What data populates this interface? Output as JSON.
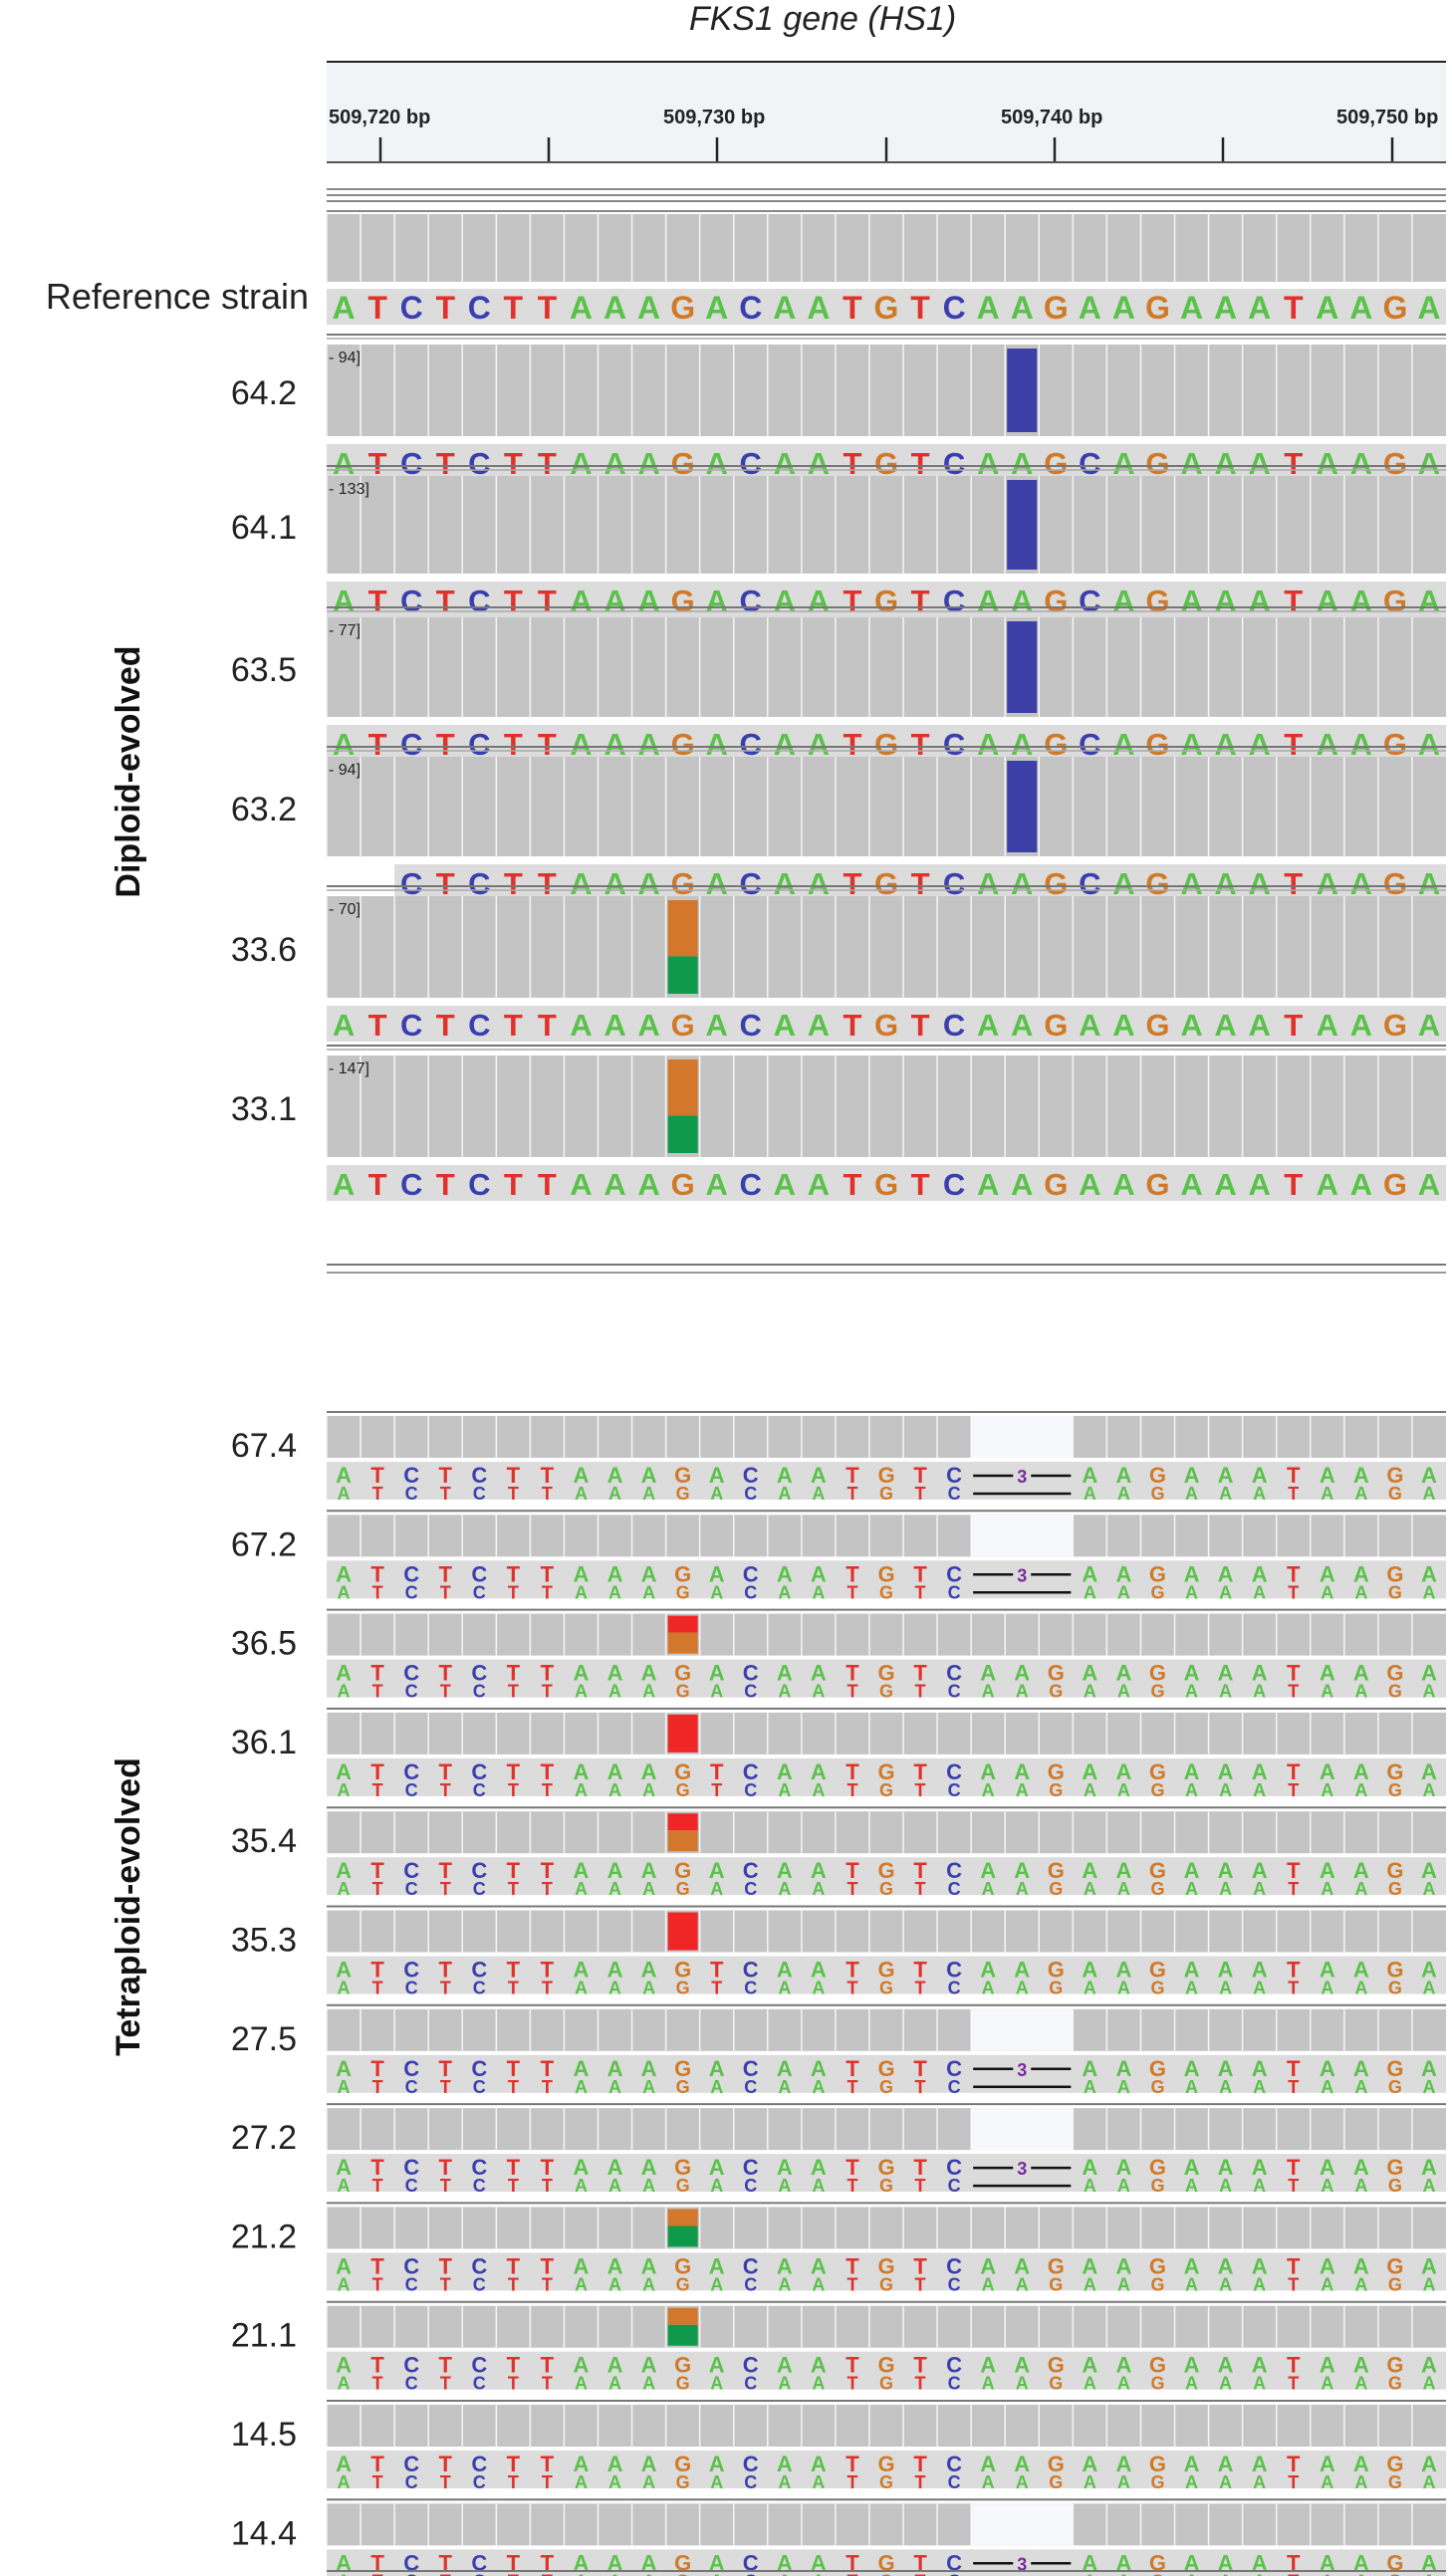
{
  "title": "FKS1 gene (HS1)",
  "ruler": {
    "labels": [
      "509,720 bp",
      "509,730 bp",
      "509,740 bp",
      "509,750 bp"
    ]
  },
  "reference": {
    "label": "Reference strain",
    "sequence": "ATCTCTTAAAGACAATGTCAAGAAGAAATAAGA"
  },
  "groups": {
    "diploid": "Diploid-evolved",
    "tetraploid": "Tetraploid-evolved"
  },
  "diploid_samples": [
    {
      "name": "64.2",
      "range": "- 94]",
      "mutation": "blue",
      "seq": "ATCTCTTAAAGACAATGTCAAGCAGAAATAAGA",
      "startIdx": 0
    },
    {
      "name": "64.1",
      "range": "- 133]",
      "mutation": "blue",
      "seq": "ATCTCTTAAAGACAATGTCAAGCAGAAATAAGA",
      "startIdx": 0
    },
    {
      "name": "63.5",
      "range": "- 77]",
      "mutation": "blue",
      "seq": "ATCTCTTAAAGACAATGTCAAGCAGAAATAAGA",
      "startIdx": 0
    },
    {
      "name": "63.2",
      "range": "- 94]",
      "mutation": "blue",
      "seq": "ATCTCTTAAAGACAATGTCAAGCAGAAATAAGA",
      "startIdx": 2
    },
    {
      "name": "33.6",
      "range": "- 70]",
      "mutation": "orange-green",
      "seq": "ATCTCTTAAAGACAATGTCAAGAAGAAATAAGA",
      "startIdx": 0
    },
    {
      "name": "33.1",
      "range": "- 147]",
      "mutation": "orange-green",
      "seq": "ATCTCTTAAAGACAATGTCAAGAAGAAATAAGA",
      "startIdx": 0
    }
  ],
  "tetraploid_samples": [
    {
      "name": "67.4",
      "mutation": "none",
      "deletion": true,
      "deletion_label": "3"
    },
    {
      "name": "67.2",
      "mutation": "none",
      "deletion": true,
      "deletion_label": "3"
    },
    {
      "name": "36.5",
      "mutation": "red-orange",
      "deletion": false
    },
    {
      "name": "36.1",
      "mutation": "red",
      "deletion": false
    },
    {
      "name": "35.4",
      "mutation": "red-orange",
      "deletion": false
    },
    {
      "name": "35.3",
      "mutation": "red",
      "deletion": false
    },
    {
      "name": "27.5",
      "mutation": "none",
      "deletion": true,
      "deletion_label": "3"
    },
    {
      "name": "27.2",
      "mutation": "none",
      "deletion": true,
      "deletion_label": "3"
    },
    {
      "name": "21.2",
      "mutation": "orange-green",
      "deletion": false
    },
    {
      "name": "21.1",
      "mutation": "orange-green",
      "deletion": false
    },
    {
      "name": "14.5",
      "mutation": "none",
      "deletion": false
    },
    {
      "name": "14.4",
      "mutation": "none",
      "deletion": true,
      "deletion_label": "3"
    }
  ],
  "colors": {
    "A": "#5ac24a",
    "T": "#e0312b",
    "C": "#3b3fae",
    "G": "#d07a29",
    "mut_blue": "#3c3fa6",
    "mut_orange": "#d2772b",
    "mut_green": "#0f9a4b",
    "mut_red": "#ee2626",
    "coverage_gray": "#c4c4c4",
    "cell_edge": "#f5f5f5"
  }
}
